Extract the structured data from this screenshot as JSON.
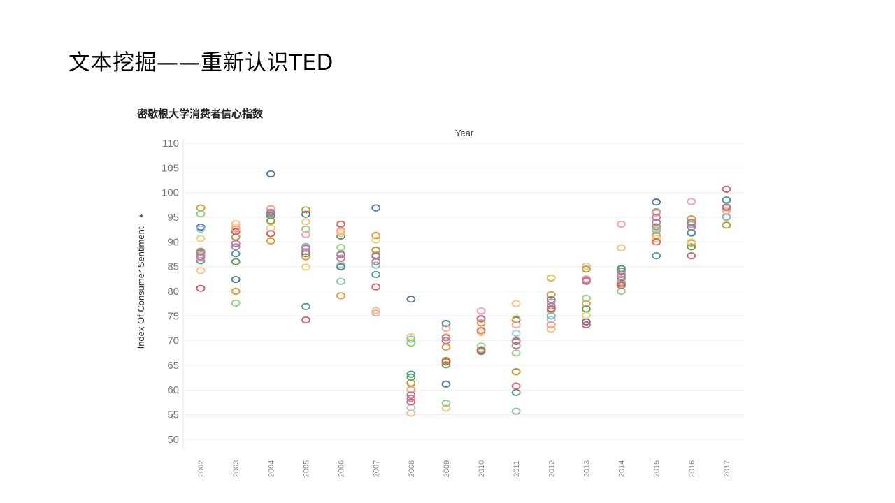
{
  "slide": {
    "title": "文本挖掘——重新认识TED"
  },
  "chart_data": {
    "type": "scatter",
    "title": "密歇根大学消费者信心指数",
    "xlabel": "Year",
    "ylabel": "Index Of Consumer Sentiment",
    "ylabel_icon": "sort-icon",
    "ylim": [
      48,
      111
    ],
    "yticks": [
      50,
      55,
      60,
      65,
      70,
      75,
      80,
      85,
      90,
      95,
      100,
      105,
      110
    ],
    "grid": true,
    "categories": [
      "2002",
      "2003",
      "2004",
      "2005",
      "2006",
      "2007",
      "2008",
      "2009",
      "2010",
      "2011",
      "2012",
      "2013",
      "2014",
      "2015",
      "2016",
      "2017"
    ],
    "series": [
      {
        "color": "#4e79a7",
        "values": [
          93.0,
          82.4,
          103.8,
          95.6,
          91.2,
          96.9,
          78.4,
          61.2,
          74.4,
          74.2,
          75.0,
          73.8,
          81.6,
          98.1,
          91.9,
          98.5
        ]
      },
      {
        "color": "#a0cbe8",
        "values": [
          92.6,
          89.6,
          95.7,
          89.0,
          85.4,
          85.3,
          56.4,
          73.4,
          76.0,
          71.5,
          74.3,
          82.1,
          82.5,
          92.6,
          93.5,
          95.1
        ]
      },
      {
        "color": "#f28e2b",
        "values": [
          96.9,
          80.0,
          90.2,
          87.0,
          79.1,
          91.3,
          60.1,
          68.7,
          73.6,
          63.7,
          79.3,
          77.5,
          81.8,
          91.3,
          94.7,
          96.9
        ]
      },
      {
        "color": "#ffbe7d",
        "values": [
          84.2,
          93.7,
          92.8,
          94.1,
          92.1,
          76.1,
          55.3,
          56.3,
          72.2,
          77.5,
          72.3,
          85.1,
          88.8,
          93.0,
          90.0,
          96.8
        ]
      },
      {
        "color": "#59a14f",
        "values": [
          87.8,
          86.0,
          94.3,
          87.6,
          87.4,
          87.1,
          62.6,
          65.1,
          67.8,
          69.8,
          76.4,
          76.4,
          84.1,
          96.1,
          89.0,
          97.1
        ]
      },
      {
        "color": "#8cd17d",
        "values": [
          95.7,
          77.6,
          95.5,
          92.6,
          88.9,
          88.4,
          69.5,
          57.3,
          68.9,
          67.5,
          76.2,
          78.6,
          80.0,
          95.9,
          93.8,
          95.0
        ]
      },
      {
        "color": "#b6992d",
        "values": [
          88.1,
          91.0,
          94.2,
          96.5,
          84.9,
          88.3,
          61.4,
          66.0,
          68.0,
          63.7,
          82.7,
          84.5,
          84.6,
          93.1,
          89.8,
          93.4
        ]
      },
      {
        "color": "#f1ce63",
        "values": [
          90.7,
          93.0,
          96.8,
          84.9,
          91.7,
          90.4,
          70.8,
          70.8,
          71.6,
          74.5,
          82.6,
          75.1,
          84.6,
          90.7,
          90.0,
          96.8
        ]
      },
      {
        "color": "#499894",
        "values": [
          86.2,
          87.6,
          95.3,
          76.9,
          85.0,
          83.4,
          63.2,
          73.5,
          68.2,
          59.5,
          78.3,
          82.5,
          84.6,
          87.2,
          91.8,
          98.5
        ]
      },
      {
        "color": "#86bcb6",
        "values": [
          87.4,
          89.7,
          96.0,
          89.1,
          82.0,
          85.3,
          70.3,
          65.7,
          68.2,
          55.7,
          75.0,
          82.1,
          82.5,
          92.3,
          93.5,
          95.1
        ]
      },
      {
        "color": "#e15759",
        "values": [
          80.6,
          92.1,
          91.7,
          74.2,
          93.6,
          80.9,
          57.6,
          65.7,
          68.0,
          60.8,
          76.5,
          73.2,
          81.2,
          90.0,
          87.2,
          100.7
        ]
      },
      {
        "color": "#ff9d9a",
        "values": [
          86.7,
          92.6,
          96.7,
          91.5,
          92.3,
          75.6,
          60.0,
          72.5,
          76.0,
          73.2,
          73.2,
          82.5,
          93.6,
          95.9,
          98.2,
          96.3
        ]
      },
      {
        "color": "#d37295",
        "values": [
          88.0,
          89.7,
          95.8,
          88.7,
          86.7,
          87.3,
          58.3,
          70.6,
          74.5,
          70.0,
          77.8,
          82.3,
          83.4,
          95.0,
          94.0,
          97.1
        ]
      },
      {
        "color": "#b07aa1",
        "values": [
          87.0,
          89.0,
          96.0,
          88.0,
          87.5,
          86.0,
          59.0,
          70.0,
          72.0,
          69.0,
          77.0,
          82.0,
          83.0,
          94.0,
          93.0,
          97.0
        ]
      }
    ]
  }
}
